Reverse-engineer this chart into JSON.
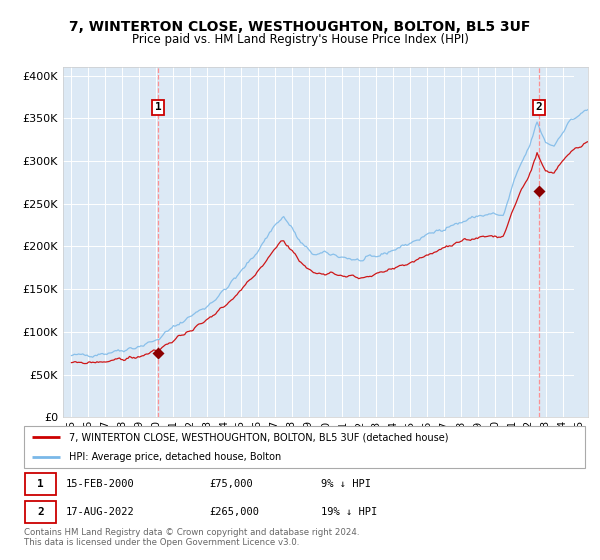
{
  "title": "7, WINTERTON CLOSE, WESTHOUGHTON, BOLTON, BL5 3UF",
  "subtitle": "Price paid vs. HM Land Registry's House Price Index (HPI)",
  "xlim": [
    1994.5,
    2025.5
  ],
  "ylim": [
    0,
    410000
  ],
  "yticks": [
    0,
    50000,
    100000,
    150000,
    200000,
    250000,
    300000,
    350000,
    400000
  ],
  "ytick_labels": [
    "£0",
    "£50K",
    "£100K",
    "£150K",
    "£200K",
    "£250K",
    "£300K",
    "£350K",
    "£400K"
  ],
  "sale1_year": 2000.12,
  "sale1_price": 75000,
  "sale2_year": 2022.62,
  "sale2_price": 265000,
  "bg_color": "#dce9f5",
  "fig_bg_color": "#ffffff",
  "hpi_line_color": "#7ab8e8",
  "price_line_color": "#cc0000",
  "sale_marker_color": "#8b0000",
  "vline_color": "#ff8888",
  "legend_border_color": "#aaaaaa",
  "footer_text": "Contains HM Land Registry data © Crown copyright and database right 2024.\nThis data is licensed under the Open Government Licence v3.0.",
  "legend1": "7, WINTERTON CLOSE, WESTHOUGHTON, BOLTON, BL5 3UF (detached house)",
  "legend2": "HPI: Average price, detached house, Bolton",
  "annotation1_label": "15-FEB-2000",
  "annotation1_price": "£75,000",
  "annotation1_hpi": "9% ↓ HPI",
  "annotation2_label": "17-AUG-2022",
  "annotation2_price": "£265,000",
  "annotation2_hpi": "19% ↓ HPI",
  "hatch_after_year": 2024.67,
  "xtick_years": [
    1995,
    1996,
    1997,
    1998,
    1999,
    2000,
    2001,
    2002,
    2003,
    2004,
    2005,
    2006,
    2007,
    2008,
    2009,
    2010,
    2011,
    2012,
    2013,
    2014,
    2015,
    2016,
    2017,
    2018,
    2019,
    2020,
    2021,
    2022,
    2023,
    2024,
    2025
  ]
}
